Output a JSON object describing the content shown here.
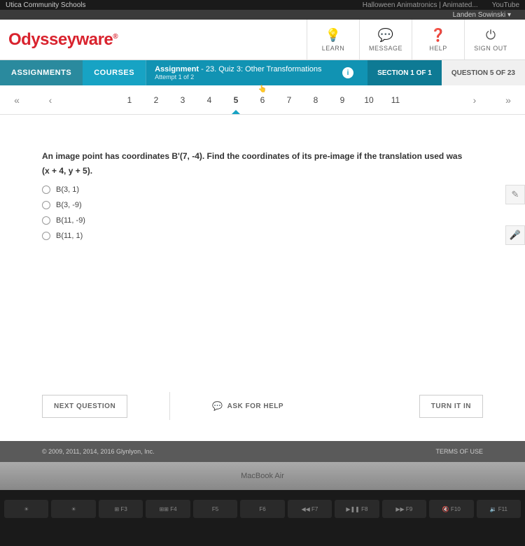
{
  "topbar": {
    "org": "Utica Community Schools",
    "tab1": "Halloween Animatronics | Animated...",
    "tab2": "YouTube"
  },
  "userbar": {
    "name": "Landen Sowinski",
    "caret": "▾"
  },
  "logo": {
    "text": "Odysseyware",
    "dot": "®"
  },
  "header_buttons": [
    {
      "icon": "💡",
      "label": "LEARN"
    },
    {
      "icon": "💬",
      "label": "MESSAGE"
    },
    {
      "icon": "❓",
      "label": "HELP"
    },
    {
      "icon": "⏻",
      "label": "SIGN OUT"
    }
  ],
  "nav": {
    "assignments": "ASSIGNMENTS",
    "courses": "COURSES"
  },
  "assignment": {
    "label": "Assignment",
    "title": "- 23. Quiz 3: Other Transformations",
    "attempt": "Attempt 1 of 2"
  },
  "section": {
    "label": "SECTION 1 OF 1"
  },
  "qcount": {
    "label": "QUESTION 5 OF 23"
  },
  "pager": {
    "first": "«",
    "prev": "‹",
    "next": "›",
    "last": "»",
    "nums": [
      "1",
      "2",
      "3",
      "4",
      "5",
      "6",
      "7",
      "8",
      "9",
      "10",
      "11"
    ],
    "active": 4
  },
  "question": {
    "line1": "An image point has coordinates B'(7, -4). Find the coordinates of its pre-image if the translation used was",
    "line2": "(x + 4, y + 5).",
    "options": [
      "B(3, 1)",
      "B(3, -9)",
      "B(11, -9)",
      "B(11, 1)"
    ]
  },
  "actions": {
    "next": "NEXT QUESTION",
    "ask": "ASK FOR HELP",
    "turnin": "TURN IT IN"
  },
  "footer": {
    "copy": "© 2009, 2011, 2014, 2016 Glynlyon, Inc.",
    "terms": "TERMS OF USE"
  },
  "laptop": {
    "label": "MacBook Air"
  },
  "keys": [
    "☀",
    "☀",
    "⊞ F3",
    "⊞⊞ F4",
    "F5",
    "F6",
    "◀◀ F7",
    "▶❚❚ F8",
    "▶▶ F9",
    "🔇 F10",
    "🔉 F11"
  ]
}
